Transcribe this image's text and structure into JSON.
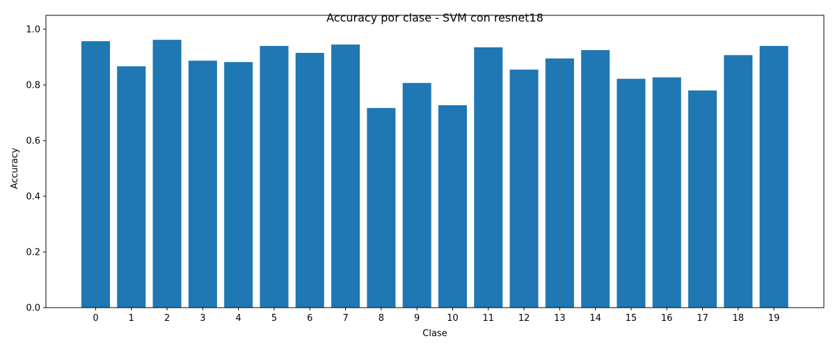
{
  "chart_data": {
    "type": "bar",
    "title": "Accuracy por clase - SVM con resnet18",
    "xlabel": "Clase",
    "ylabel": "Accuracy",
    "categories": [
      "0",
      "1",
      "2",
      "3",
      "4",
      "5",
      "6",
      "7",
      "8",
      "9",
      "10",
      "11",
      "12",
      "13",
      "14",
      "15",
      "16",
      "17",
      "18",
      "19"
    ],
    "values": [
      0.957,
      0.867,
      0.962,
      0.887,
      0.882,
      0.94,
      0.915,
      0.945,
      0.717,
      0.807,
      0.727,
      0.935,
      0.855,
      0.895,
      0.925,
      0.822,
      0.827,
      0.78,
      0.907,
      0.94
    ],
    "ylim": [
      0,
      1.0
    ],
    "yticks": [
      "0.0",
      "0.2",
      "0.4",
      "0.6",
      "0.8",
      "1.0"
    ],
    "bar_color": "#1f77b4",
    "grid": false,
    "legend": "none"
  }
}
